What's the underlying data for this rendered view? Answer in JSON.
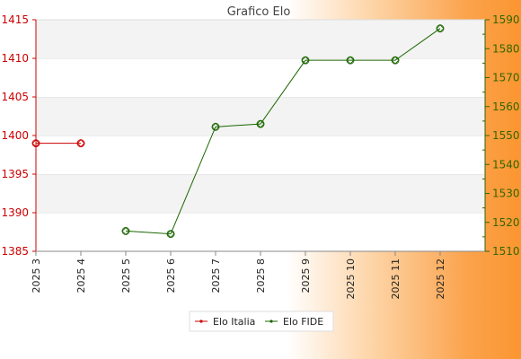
{
  "chart_data": {
    "type": "line",
    "title": "Grafico Elo",
    "categories": [
      "2025 3",
      "2025 4",
      "2025 5",
      "2025 6",
      "2025 7",
      "2025 8",
      "2025 9",
      "2025 10",
      "2025 11",
      "2025 12"
    ],
    "y_left": {
      "ylim": [
        1385,
        1415
      ],
      "ticks": [
        1385,
        1390,
        1395,
        1400,
        1405,
        1410,
        1415
      ],
      "color": "#cc0000"
    },
    "y_right": {
      "ylim": [
        1510,
        1590
      ],
      "ticks": [
        1510,
        1520,
        1530,
        1540,
        1550,
        1560,
        1570,
        1580,
        1590
      ],
      "color": "#336600"
    },
    "series": [
      {
        "name": "Elo Italia",
        "axis": "left",
        "color": "#cc0000",
        "values": [
          1399,
          1399,
          null,
          null,
          null,
          null,
          null,
          null,
          null,
          null
        ]
      },
      {
        "name": "Elo FIDE",
        "axis": "right",
        "color": "#1a6600",
        "values": [
          null,
          null,
          1517,
          1516,
          1553,
          1554,
          1576,
          1576,
          1576,
          1587
        ]
      }
    ],
    "grid": true,
    "legend": "bottom-center"
  }
}
